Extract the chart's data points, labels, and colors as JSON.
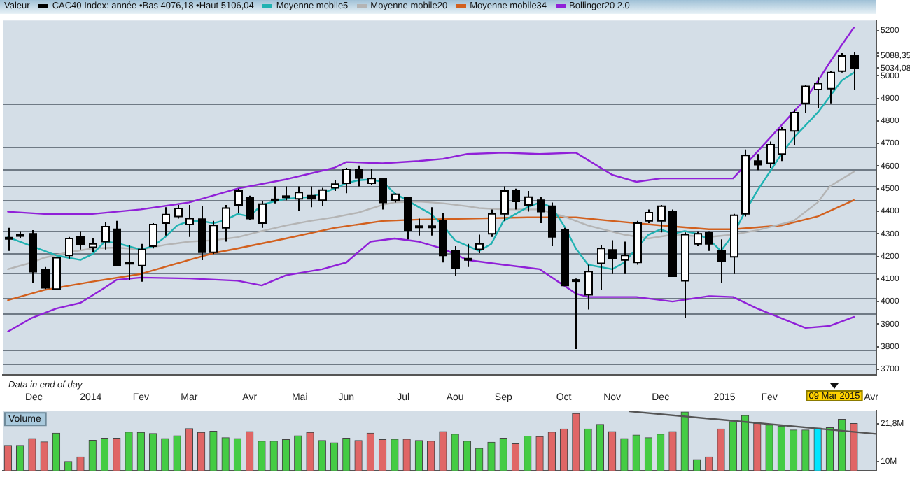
{
  "chart_data": [
    {
      "type": "candlestick",
      "legend_title": "Valeur",
      "legend": "top",
      "marker": "none",
      "grid": false,
      "x": [
        "2013-11-25",
        "2013-12-02",
        "2013-12-09",
        "2013-12-16",
        "2013-12-23",
        "2013-12-30",
        "2014-01-06",
        "2014-01-13",
        "2014-01-20",
        "2014-01-27",
        "2014-02-03",
        "2014-02-10",
        "2014-02-17",
        "2014-02-24",
        "2014-03-03",
        "2014-03-10",
        "2014-03-17",
        "2014-03-24",
        "2014-03-31",
        "2014-04-07",
        "2014-04-14",
        "2014-04-21",
        "2014-04-28",
        "2014-05-05",
        "2014-05-12",
        "2014-05-19",
        "2014-05-26",
        "2014-06-02",
        "2014-06-09",
        "2014-06-16",
        "2014-06-23",
        "2014-06-30",
        "2014-07-07",
        "2014-07-14",
        "2014-07-21",
        "2014-07-28",
        "2014-08-04",
        "2014-08-11",
        "2014-08-18",
        "2014-08-25",
        "2014-09-01",
        "2014-09-08",
        "2014-09-15",
        "2014-09-22",
        "2014-09-29",
        "2014-10-06",
        "2014-10-13",
        "2014-10-20",
        "2014-10-27",
        "2014-11-03",
        "2014-11-10",
        "2014-11-17",
        "2014-11-24",
        "2014-12-01",
        "2014-12-08",
        "2014-12-15",
        "2014-12-22",
        "2014-12-29",
        "2015-01-05",
        "2015-01-12",
        "2015-01-19",
        "2015-01-26",
        "2015-02-02",
        "2015-02-09",
        "2015-02-16",
        "2015-02-23",
        "2015-03-02",
        "2015-03-09",
        "2015-03-16",
        "2015-03-23",
        "2015-03-30"
      ],
      "xlim": [
        "2013-11-22",
        "2015-04-12"
      ],
      "xticks": [
        {
          "value": "2013-12-10",
          "label": "Dec"
        },
        {
          "value": "2014-01-12",
          "label": "2014"
        },
        {
          "value": "2014-02-10",
          "label": "Fev"
        },
        {
          "value": "2014-03-10",
          "label": "Mar"
        },
        {
          "value": "2014-04-14",
          "label": "Avr"
        },
        {
          "value": "2014-05-13",
          "label": "Mai"
        },
        {
          "value": "2014-06-09",
          "label": "Jun"
        },
        {
          "value": "2014-07-12",
          "label": "Jul"
        },
        {
          "value": "2014-08-11",
          "label": "Aou"
        },
        {
          "value": "2014-09-08",
          "label": "Sep"
        },
        {
          "value": "2014-10-13",
          "label": "Oct"
        },
        {
          "value": "2014-11-10",
          "label": "Nov"
        },
        {
          "value": "2014-12-08",
          "label": "Dec"
        },
        {
          "value": "2015-01-14",
          "label": "2015"
        },
        {
          "value": "2015-02-09",
          "label": "Fev"
        },
        {
          "value": "2015-04-09",
          "label": "Avr"
        }
      ],
      "ylim": [
        3675,
        5245
      ],
      "yticks": [
        3700,
        3800,
        3900,
        4000,
        4100,
        4200,
        4300,
        4400,
        4500,
        4600,
        4700,
        4800,
        4900,
        5000,
        {
          "value": 5034.08,
          "label": "5034,08"
        },
        {
          "value": 5088.35,
          "label": "5088,35"
        },
        {
          "value": 5100,
          "label": null
        },
        5200
      ],
      "series": [
        {
          "type": "candlestick",
          "name": "CAC40 Index: année •Bas 4076,18 •Haut 5106,04",
          "color": "#000000",
          "ohlc": [
            [
              4283,
              4326,
              4224,
              4281
            ],
            [
              4296,
              4312,
              4279,
              4294
            ],
            [
              4300,
              4316,
              4081,
              4132
            ],
            [
              4143,
              4153,
              4055,
              4061
            ],
            [
              4055,
              4198,
              4051,
              4194
            ],
            [
              4204,
              4286,
              4190,
              4279
            ],
            [
              4286,
              4312,
              4230,
              4251
            ],
            [
              4240,
              4279,
              4218,
              4255
            ],
            [
              4265,
              4353,
              4230,
              4332
            ],
            [
              4320,
              4357,
              4159,
              4159
            ],
            [
              4173,
              4251,
              4096,
              4167
            ],
            [
              4159,
              4255,
              4088,
              4230
            ],
            [
              4245,
              4347,
              4235,
              4341
            ],
            [
              4347,
              4418,
              4292,
              4385
            ],
            [
              4377,
              4428,
              4367,
              4412
            ],
            [
              4341,
              4428,
              4286,
              4367
            ],
            [
              4365,
              4422,
              4183,
              4218
            ],
            [
              4218,
              4357,
              4210,
              4337
            ],
            [
              4326,
              4428,
              4265,
              4414
            ],
            [
              4428,
              4500,
              4394,
              4490
            ],
            [
              4459,
              4469,
              4361,
              4367
            ],
            [
              4347,
              4443,
              4326,
              4432
            ],
            [
              4453,
              4510,
              4435,
              4449
            ],
            [
              4467,
              4510,
              4449,
              4463
            ],
            [
              4455,
              4510,
              4402,
              4483
            ],
            [
              4469,
              4510,
              4418,
              4455
            ],
            [
              4449,
              4504,
              4422,
              4494
            ],
            [
              4504,
              4537,
              4490,
              4520
            ],
            [
              4524,
              4592,
              4480,
              4586
            ],
            [
              4586,
              4602,
              4510,
              4547
            ],
            [
              4524,
              4586,
              4516,
              4545
            ],
            [
              4545,
              4548,
              4408,
              4439
            ],
            [
              4449,
              4479,
              4439,
              4475
            ],
            [
              4459,
              4462,
              4275,
              4316
            ],
            [
              4334,
              4367,
              4292,
              4332
            ],
            [
              4334,
              4418,
              4292,
              4330
            ],
            [
              4357,
              4392,
              4173,
              4204
            ],
            [
              4224,
              4245,
              4112,
              4149
            ],
            [
              4190,
              4255,
              4153,
              4184
            ],
            [
              4231,
              4296,
              4214,
              4255
            ],
            [
              4300,
              4408,
              4286,
              4388
            ],
            [
              4388,
              4510,
              4357,
              4490
            ],
            [
              4490,
              4500,
              4408,
              4443
            ],
            [
              4428,
              4490,
              4398,
              4463
            ],
            [
              4449,
              4463,
              4347,
              4398
            ],
            [
              4422,
              4439,
              4245,
              4286
            ],
            [
              4316,
              4326,
              4071,
              4071
            ],
            [
              4096,
              4102,
              3790,
              4092
            ],
            [
              4030,
              4163,
              3965,
              4133
            ],
            [
              4169,
              4251,
              4051,
              4235
            ],
            [
              4229,
              4271,
              4122,
              4190
            ],
            [
              4184,
              4265,
              4122,
              4204
            ],
            [
              4173,
              4357,
              4163,
              4347
            ],
            [
              4357,
              4408,
              4347,
              4394
            ],
            [
              4357,
              4428,
              4306,
              4422
            ],
            [
              4398,
              4408,
              4112,
              4112
            ],
            [
              4092,
              4306,
              3928,
              4296
            ],
            [
              4255,
              4312,
              4245,
              4300
            ],
            [
              4306,
              4312,
              4224,
              4255
            ],
            [
              4224,
              4275,
              4082,
              4178
            ],
            [
              4198,
              4388,
              4122,
              4382
            ],
            [
              4388,
              4673,
              4377,
              4647
            ],
            [
              4622,
              4653,
              4582,
              4606
            ],
            [
              4612,
              4708,
              4592,
              4694
            ],
            [
              4653,
              4775,
              4622,
              4761
            ],
            [
              4755,
              4851,
              4694,
              4837
            ],
            [
              4878,
              4959,
              4837,
              4953
            ],
            [
              4939,
              4994,
              4857,
              4965
            ],
            [
              4943,
              5020,
              4878,
              5014
            ],
            [
              5020,
              5100,
              5014,
              5088
            ],
            [
              5088.35,
              5106.04,
              4939,
              5034.08
            ]
          ],
          "colors": [
            "#000000",
            "#000000",
            "#000000",
            "#000000",
            "#ffffff",
            "#ffffff",
            "#000000",
            "#ffffff",
            "#ffffff",
            "#000000",
            "#000000",
            "#ffffff",
            "#ffffff",
            "#ffffff",
            "#ffffff",
            "#ffffff",
            "#000000",
            "#ffffff",
            "#ffffff",
            "#ffffff",
            "#000000",
            "#ffffff",
            "#000000",
            "#000000",
            "#ffffff",
            "#000000",
            "#ffffff",
            "#ffffff",
            "#ffffff",
            "#000000",
            "#ffffff",
            "#000000",
            "#ffffff",
            "#000000",
            "#000000",
            "#000000",
            "#000000",
            "#000000",
            "#000000",
            "#ffffff",
            "#ffffff",
            "#ffffff",
            "#000000",
            "#ffffff",
            "#000000",
            "#000000",
            "#000000",
            "#000000",
            "#ffffff",
            "#ffffff",
            "#000000",
            "#ffffff",
            "#ffffff",
            "#ffffff",
            "#ffffff",
            "#000000",
            "#ffffff",
            "#ffffff",
            "#000000",
            "#000000",
            "#ffffff",
            "#ffffff",
            "#000000",
            "#ffffff",
            "#ffffff",
            "#ffffff",
            "#ffffff",
            "#ffffff",
            "#ffffff",
            "#ffffff",
            "#000000"
          ]
        },
        {
          "type": "line",
          "name": "Moyenne mobile5",
          "color": "#20b2b2",
          "x": [
            "2013-11-25",
            "2013-12-09",
            "2013-12-23",
            "2013-12-30",
            "2014-01-06",
            "2014-01-13",
            "2014-01-20",
            "2014-01-27",
            "2014-02-10",
            "2014-02-17",
            "2014-02-24",
            "2014-03-03",
            "2014-03-10",
            "2014-03-17",
            "2014-03-24",
            "2014-03-31",
            "2014-04-07",
            "2014-04-14",
            "2014-04-21",
            "2014-04-28",
            "2014-05-05",
            "2014-05-19",
            "2014-05-26",
            "2014-06-02",
            "2014-06-09",
            "2014-06-16",
            "2014-06-23",
            "2014-06-30",
            "2014-07-07",
            "2014-07-14",
            "2014-07-21",
            "2014-07-28",
            "2014-08-04",
            "2014-08-11",
            "2014-08-25",
            "2014-09-01",
            "2014-09-08",
            "2014-09-22",
            "2014-09-29",
            "2014-10-06",
            "2014-10-13",
            "2014-10-20",
            "2014-10-27",
            "2014-11-10",
            "2014-11-17",
            "2014-11-24",
            "2014-12-01",
            "2014-12-08",
            "2014-12-15",
            "2014-12-22",
            "2014-12-29",
            "2015-01-05",
            "2015-01-12",
            "2015-01-19",
            "2015-01-26",
            "2015-02-02",
            "2015-02-09",
            "2015-02-16",
            "2015-02-23",
            "2015-03-09",
            "2015-03-16",
            "2015-03-23",
            "2015-03-30"
          ],
          "values": [
            4285,
            4245,
            4204,
            4194,
            4184,
            4210,
            4265,
            4259,
            4230,
            4245,
            4285,
            4337,
            4357,
            4357,
            4347,
            4361,
            4388,
            4377,
            4428,
            4443,
            4455,
            4463,
            4479,
            4500,
            4524,
            4537,
            4541,
            4530,
            4479,
            4449,
            4418,
            4388,
            4337,
            4270,
            4224,
            4255,
            4357,
            4418,
            4439,
            4418,
            4337,
            4234,
            4163,
            4143,
            4173,
            4234,
            4296,
            4320,
            4300,
            4312,
            4300,
            4275,
            4224,
            4296,
            4398,
            4490,
            4571,
            4653,
            4724,
            4837,
            4908,
            4979,
            5014
          ]
        },
        {
          "type": "line",
          "name": "Moyenne mobile20",
          "color": "#b4b4b4",
          "x": [
            "2013-11-25",
            "2013-12-09",
            "2013-12-16",
            "2013-12-30",
            "2014-01-13",
            "2014-01-27",
            "2014-02-10",
            "2014-02-24",
            "2014-03-10",
            "2014-03-24",
            "2014-04-07",
            "2014-04-21",
            "2014-05-05",
            "2014-05-19",
            "2014-06-02",
            "2014-06-16",
            "2014-06-30",
            "2014-07-07",
            "2014-07-21",
            "2014-08-04",
            "2014-08-18",
            "2014-08-25",
            "2014-09-08",
            "2014-09-29",
            "2014-10-13",
            "2014-10-27",
            "2014-11-17",
            "2014-12-01",
            "2014-12-15",
            "2015-01-05",
            "2015-01-19",
            "2015-02-02",
            "2015-02-23",
            "2015-03-09",
            "2015-03-16",
            "2015-03-30"
          ],
          "values": [
            4143,
            4173,
            4194,
            4218,
            4235,
            4239,
            4230,
            4251,
            4265,
            4271,
            4285,
            4312,
            4337,
            4357,
            4373,
            4394,
            4428,
            4439,
            4443,
            4435,
            4422,
            4414,
            4408,
            4408,
            4377,
            4337,
            4296,
            4279,
            4296,
            4286,
            4296,
            4316,
            4357,
            4439,
            4510,
            4575
          ]
        },
        {
          "type": "line",
          "name": "Moyenne mobile34",
          "color": "#d2601e",
          "x": [
            "2013-11-25",
            "2013-12-16",
            "2014-01-13",
            "2014-02-10",
            "2014-03-10",
            "2014-03-24",
            "2014-04-07",
            "2014-05-05",
            "2014-06-02",
            "2014-06-30",
            "2014-07-21",
            "2014-08-18",
            "2014-09-22",
            "2014-10-20",
            "2014-11-10",
            "2014-12-08",
            "2015-01-05",
            "2015-01-19",
            "2015-02-16",
            "2015-03-09",
            "2015-03-30"
          ],
          "values": [
            4006,
            4051,
            4088,
            4122,
            4184,
            4214,
            4235,
            4279,
            4326,
            4357,
            4363,
            4367,
            4373,
            4373,
            4357,
            4337,
            4320,
            4320,
            4337,
            4377,
            4449
          ]
        },
        {
          "type": "line",
          "name": "Bollinger20 2.0",
          "color": "#9020d8",
          "x": [
            "2013-11-25",
            "2013-12-16",
            "2014-01-13",
            "2014-02-10",
            "2014-03-10",
            "2014-04-07",
            "2014-05-05",
            "2014-06-02",
            "2014-06-09",
            "2014-06-30",
            "2014-07-21",
            "2014-08-04",
            "2014-08-18",
            "2014-09-08",
            "2014-09-29",
            "2014-10-20",
            "2014-11-10",
            "2014-11-24",
            "2014-12-08",
            "2015-01-19",
            "2015-02-02",
            "2015-03-02",
            "2015-03-09",
            "2015-03-16",
            "2015-03-30"
          ],
          "values": [
            4398,
            4388,
            4388,
            4408,
            4439,
            4500,
            4541,
            4592,
            4618,
            4612,
            4622,
            4632,
            4653,
            4659,
            4653,
            4659,
            4561,
            4530,
            4545,
            4545,
            4663,
            4898,
            4975,
            5059,
            5214
          ]
        },
        {
          "type": "line",
          "color": "#9020d8",
          "x": [
            "2013-11-25",
            "2013-12-09",
            "2013-12-23",
            "2014-01-06",
            "2014-01-20",
            "2014-01-27",
            "2014-02-10",
            "2014-03-10",
            "2014-04-07",
            "2014-04-21",
            "2014-05-05",
            "2014-05-26",
            "2014-06-09",
            "2014-06-23",
            "2014-07-07",
            "2014-07-21",
            "2014-08-04",
            "2014-08-18",
            "2014-09-08",
            "2014-09-29",
            "2014-10-20",
            "2014-10-27",
            "2014-11-24",
            "2014-12-15",
            "2015-01-05",
            "2015-01-19",
            "2015-02-02",
            "2015-03-02",
            "2015-03-16",
            "2015-03-30"
          ],
          "values": [
            3867,
            3928,
            3969,
            3994,
            4061,
            4096,
            4106,
            4102,
            4092,
            4071,
            4116,
            4143,
            4173,
            4265,
            4279,
            4265,
            4234,
            4184,
            4163,
            4143,
            4035,
            4020,
            4020,
            4000,
            4024,
            4020,
            3969,
            3883,
            3892,
            3932
          ]
        }
      ],
      "ref_lines": [
        {
          "axis": "y",
          "value": 4877,
          "color": "#6f7a85"
        },
        {
          "axis": "y",
          "value": 4684,
          "color": "#6f7a85"
        },
        {
          "axis": "y",
          "value": 4586,
          "color": "#6f7a85"
        },
        {
          "axis": "y",
          "value": 4510,
          "color": "#6f7a85"
        },
        {
          "axis": "y",
          "value": 4450,
          "color": "#6f7a85"
        },
        {
          "axis": "y",
          "value": 4316,
          "color": "#6f7a85"
        },
        {
          "axis": "y",
          "value": 4215,
          "color": "#6f7a85"
        },
        {
          "axis": "y",
          "value": 4126,
          "color": "#6f7a85"
        },
        {
          "axis": "y",
          "value": 4015,
          "color": "#6f7a85"
        },
        {
          "axis": "y",
          "value": 3949,
          "color": "#6f7a85"
        },
        {
          "axis": "y",
          "value": 3788,
          "color": "#6f7a85"
        },
        {
          "axis": "y",
          "value": 3726,
          "color": "#6f7a85"
        }
      ],
      "annotations": [
        "Data in end of day",
        "09 Mar 2015"
      ]
    },
    {
      "type": "bar",
      "title": "Volume",
      "grid": false,
      "x": [
        "2013-11-25",
        "2013-12-02",
        "2013-12-09",
        "2013-12-16",
        "2013-12-23",
        "2013-12-30",
        "2014-01-06",
        "2014-01-13",
        "2014-01-20",
        "2014-01-27",
        "2014-02-03",
        "2014-02-10",
        "2014-02-17",
        "2014-02-24",
        "2014-03-03",
        "2014-03-10",
        "2014-03-17",
        "2014-03-24",
        "2014-03-31",
        "2014-04-07",
        "2014-04-14",
        "2014-04-21",
        "2014-04-28",
        "2014-05-05",
        "2014-05-12",
        "2014-05-19",
        "2014-05-26",
        "2014-06-02",
        "2014-06-09",
        "2014-06-16",
        "2014-06-23",
        "2014-06-30",
        "2014-07-07",
        "2014-07-14",
        "2014-07-21",
        "2014-07-28",
        "2014-08-04",
        "2014-08-11",
        "2014-08-18",
        "2014-08-25",
        "2014-09-01",
        "2014-09-08",
        "2014-09-15",
        "2014-09-22",
        "2014-09-29",
        "2014-10-06",
        "2014-10-13",
        "2014-10-20",
        "2014-10-27",
        "2014-11-03",
        "2014-11-10",
        "2014-11-17",
        "2014-11-24",
        "2014-12-01",
        "2014-12-08",
        "2014-12-15",
        "2014-12-22",
        "2014-12-29",
        "2015-01-05",
        "2015-01-12",
        "2015-01-19",
        "2015-01-26",
        "2015-02-02",
        "2015-02-09",
        "2015-02-16",
        "2015-02-23",
        "2015-03-02",
        "2015-03-09",
        "2015-03-16",
        "2015-03-23",
        "2015-03-30"
      ],
      "xlim": [
        "2013-11-22",
        "2015-04-12"
      ],
      "ylim": [
        7.2,
        25.8
      ],
      "yticks": [
        {
          "value": 10,
          "label": "10M"
        },
        {
          "value": 21.8,
          "label": "21,8M"
        }
      ],
      "series": [
        {
          "type": "bar",
          "values": [
            15.0,
            15.0,
            17.1,
            16.1,
            18.8,
            10.0,
            11.4,
            16.6,
            17.2,
            17.2,
            19.1,
            19.0,
            18.7,
            17.1,
            18.0,
            20.2,
            19.0,
            19.4,
            17.4,
            17.1,
            19.3,
            16.3,
            16.3,
            16.8,
            18.0,
            19.0,
            16.5,
            15.8,
            17.2,
            16.5,
            18.8,
            16.8,
            16.9,
            16.9,
            16.5,
            16.3,
            19.3,
            18.5,
            16.3,
            14.1,
            16.0,
            17.2,
            15.5,
            17.9,
            17.7,
            19.1,
            20.1,
            24.9,
            20.1,
            21.5,
            19.3,
            17.1,
            18.2,
            17.4,
            18.5,
            19.3,
            25.4,
            10.6,
            11.4,
            20.1,
            22.4,
            24.3,
            21.8,
            21.3,
            21.0,
            19.8,
            19.8,
            20.4,
            20.5,
            23.1,
            21.8
          ],
          "colors": [
            "#e06666",
            "#44cc44",
            "#e06666",
            "#e06666",
            "#44cc44",
            "#44cc44",
            "#e06666",
            "#44cc44",
            "#44cc44",
            "#e06666",
            "#44cc44",
            "#44cc44",
            "#44cc44",
            "#44cc44",
            "#44cc44",
            "#e06666",
            "#e06666",
            "#44cc44",
            "#44cc44",
            "#44cc44",
            "#e06666",
            "#44cc44",
            "#44cc44",
            "#44cc44",
            "#44cc44",
            "#e06666",
            "#44cc44",
            "#44cc44",
            "#44cc44",
            "#e06666",
            "#e06666",
            "#e06666",
            "#44cc44",
            "#e06666",
            "#44cc44",
            "#e06666",
            "#e06666",
            "#44cc44",
            "#44cc44",
            "#44cc44",
            "#44cc44",
            "#44cc44",
            "#e06666",
            "#44cc44",
            "#e06666",
            "#e06666",
            "#e06666",
            "#e06666",
            "#44cc44",
            "#44cc44",
            "#e06666",
            "#44cc44",
            "#44cc44",
            "#44cc44",
            "#44cc44",
            "#e06666",
            "#44cc44",
            "#44cc44",
            "#e06666",
            "#e06666",
            "#44cc44",
            "#44cc44",
            "#e06666",
            "#44cc44",
            "#44cc44",
            "#44cc44",
            "#44cc44",
            "#00e5ff",
            "#44cc44",
            "#44cc44",
            "#e06666"
          ]
        },
        {
          "type": "line",
          "color": "#555555",
          "x": [
            "2014-11-20",
            "2015-04-12"
          ],
          "values": [
            25.6,
            18.6
          ]
        }
      ]
    }
  ]
}
